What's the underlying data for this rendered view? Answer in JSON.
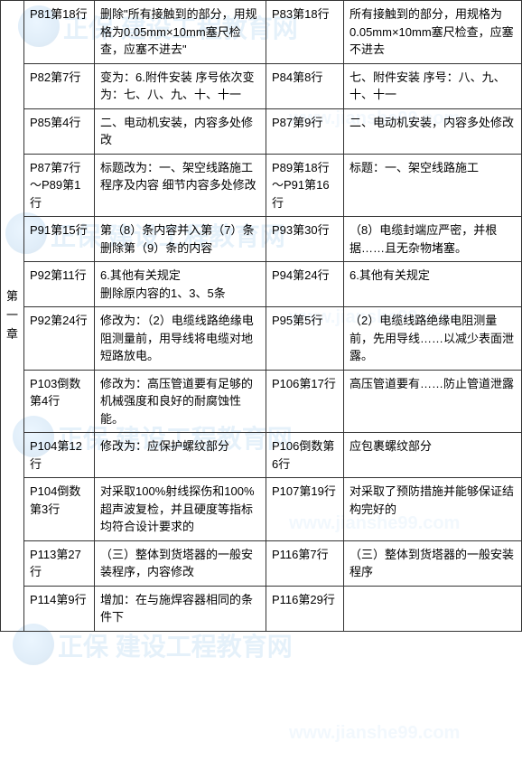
{
  "chapter_label": "第一章",
  "border_color": "#333333",
  "text_color": "#000000",
  "bg_color": "#ffffff",
  "watermark_text": "正保 建设工程教育网",
  "watermark_url": "www.jianshe99.com",
  "watermark_color": "#5aa5e0",
  "font_size": 13,
  "rows": [
    {
      "loc1": "P81第18行",
      "c1": "删除\"所有接触到的部分，用规格为0.05mm×10mm塞尺检查，应塞不进去\"",
      "loc2": "P83第18行",
      "c2": "所有接触到的部分，用规格为0.05mm×10mm塞尺检查，应塞不进去"
    },
    {
      "loc1": "P82第7行",
      "c1": "变为：6.附件安装  序号依次变为：七、八、九、十、十一",
      "loc2": "P84第8行",
      "c2": "七、附件安装  序号：八、九、十、十一"
    },
    {
      "loc1": "P85第4行",
      "c1": "二、电动机安装，内容多处修改",
      "loc2": "P87第9行",
      "c2": "二、电动机安装，内容多处修改"
    },
    {
      "loc1": "P87第7行～P89第1行",
      "c1": "标题改为：一、架空线路施工程序及内容  细节内容多处修改",
      "loc2": "P89第18行～P91第16行",
      "c2": "标题：一、架空线路施工"
    },
    {
      "loc1": "P91第15行",
      "c1": "第（8）条内容并入第（7）条\n删除第（9）条的内容",
      "loc2": "P93第30行",
      "c2": "（8）电缆封端应严密，并根据……且无杂物堵塞。"
    },
    {
      "loc1": "P92第11行",
      "c1": "6.其他有关规定\n删除原内容的1、3、5条",
      "loc2": "P94第24行",
      "c2": "6.其他有关规定"
    },
    {
      "loc1": "P92第24行",
      "c1": "修改为：（2）电缆线路绝缘电阻测量前，用导线将电缆对地短路放电。",
      "loc2": "P95第5行",
      "c2": "（2）电缆线路绝缘电阻测量前，先用导线……以减少表面泄露。"
    },
    {
      "loc1": "P103倒数第4行",
      "c1": "修改为：高压管道要有足够的机械强度和良好的耐腐蚀性能。",
      "loc2": "P106第17行",
      "c2": "高压管道要有……防止管道泄露"
    },
    {
      "loc1": "P104第12行",
      "c1": "修改为：应保护螺纹部分",
      "loc2": "P106倒数第6行",
      "c2": "应包裹螺纹部分"
    },
    {
      "loc1": "P104倒数第3行",
      "c1": "对采取100%射线探伤和100%超声波复检，并且硬度等指标均符合设计要求的",
      "loc2": "P107第19行",
      "c2": "对采取了预防措施并能够保证结构完好的"
    },
    {
      "loc1": "P113第27行",
      "c1": "（三）整体到货塔器的一般安装程序，内容修改",
      "loc2": "P116第7行",
      "c2": "（三）整体到货塔器的一般安装程序"
    },
    {
      "loc1": "P114第9行",
      "c1": "增加：在与施焊容器相同的条件下",
      "loc2": "P116第29行",
      "c2": ""
    }
  ]
}
